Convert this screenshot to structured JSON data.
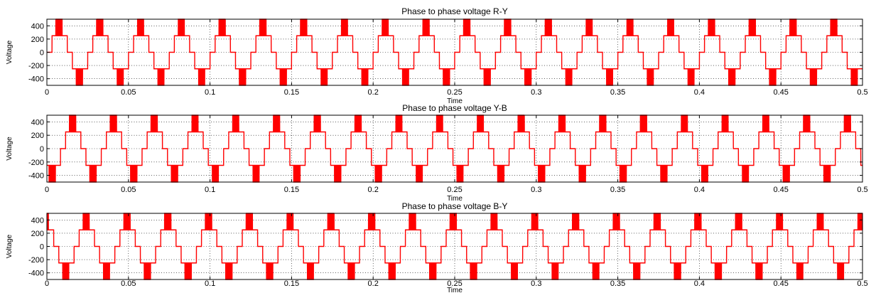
{
  "chart_data": [
    {
      "type": "line",
      "title": "Phase to phase voltage R-Y",
      "xlabel": "Time",
      "ylabel": "Voltage",
      "xlim": [
        0,
        0.5
      ],
      "ylim": [
        -500,
        500
      ],
      "xticks": [
        "0",
        "0.05",
        "0.1",
        "0.15",
        "0.2",
        "0.25",
        "0.3",
        "0.35",
        "0.4",
        "0.45",
        "0.5"
      ],
      "yticks": [
        "400",
        "200",
        "0",
        "-200",
        "-400"
      ],
      "grid": true,
      "color": "#ff0000",
      "frequency_hz": 40,
      "phase_deg": 0,
      "levels": [
        0,
        250,
        500,
        250,
        0,
        -250,
        -500,
        -250
      ]
    },
    {
      "type": "line",
      "title": "Phase to phase voltage Y-B",
      "xlabel": "Time",
      "ylabel": "Voltage",
      "xlim": [
        0,
        0.5
      ],
      "ylim": [
        -500,
        500
      ],
      "xticks": [
        "0",
        "0.05",
        "0.1",
        "0.15",
        "0.2",
        "0.25",
        "0.3",
        "0.35",
        "0.4",
        "0.45",
        "0.5"
      ],
      "yticks": [
        "400",
        "200",
        "0",
        "-200",
        "-400"
      ],
      "grid": true,
      "color": "#ff0000",
      "frequency_hz": 40,
      "phase_deg": -120,
      "levels": [
        0,
        250,
        500,
        250,
        0,
        -250,
        -500,
        -250
      ]
    },
    {
      "type": "line",
      "title": "Phase to phase voltage B-Y",
      "xlabel": "Time",
      "ylabel": "Voltage",
      "xlim": [
        0,
        0.5
      ],
      "ylim": [
        -500,
        500
      ],
      "xticks": [
        "0",
        "0.05",
        "0.1",
        "0.15",
        "0.2",
        "0.25",
        "0.3",
        "0.35",
        "0.4",
        "0.45",
        "0.5"
      ],
      "yticks": [
        "400",
        "200",
        "0",
        "-200",
        "-400"
      ],
      "grid": true,
      "color": "#ff0000",
      "frequency_hz": 40,
      "phase_deg": 120,
      "levels": [
        0,
        250,
        500,
        250,
        0,
        -250,
        -500,
        -250
      ]
    }
  ]
}
